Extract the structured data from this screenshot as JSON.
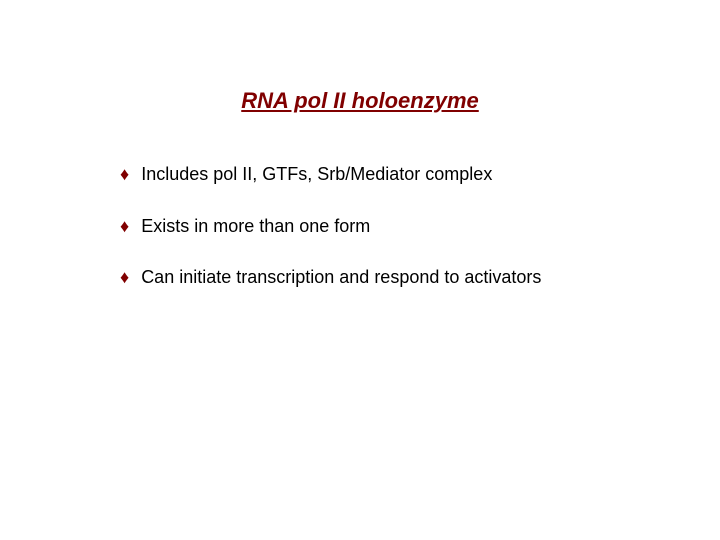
{
  "title": {
    "text": "RNA pol II holoenzyme",
    "color": "#800000",
    "fontsize": 22
  },
  "bullets": {
    "marker": "♦",
    "marker_color": "#800000",
    "text_color": "#000000",
    "fontsize": 18,
    "items": [
      "Includes pol II, GTFs, Srb/Mediator complex",
      "Exists in more than one form",
      "Can initiate transcription and respond to activators"
    ]
  },
  "background_color": "#ffffff"
}
